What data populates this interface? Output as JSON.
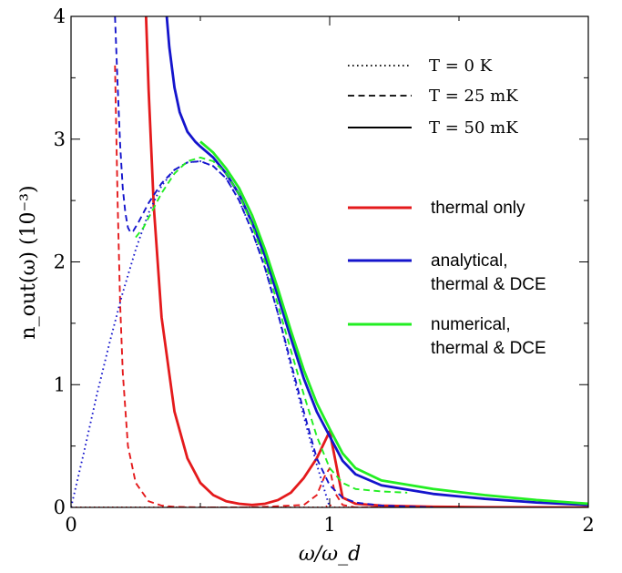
{
  "chart_data": {
    "type": "line",
    "xlabel": "ω/ω_d",
    "ylabel": "n_out(ω)   (10⁻³)",
    "xlim": [
      0,
      2
    ],
    "ylim": [
      0,
      4
    ],
    "x_ticks": [
      "0",
      "1",
      "2"
    ],
    "y_ticks": [
      "0",
      "1",
      "2",
      "3",
      "4"
    ],
    "grid": false,
    "legend_placement": "top-right",
    "legend_linestyles": [
      {
        "label": "T = 0 K",
        "style": "dotted"
      },
      {
        "label": "T = 25 mK",
        "style": "dashed"
      },
      {
        "label": "T = 50 mK",
        "style": "solid"
      }
    ],
    "legend_colors": [
      {
        "label": "thermal only",
        "color": "#e41a1c"
      },
      {
        "label": "analytical,\nthermal & DCE",
        "color": "#1414cc"
      },
      {
        "label": "numerical,\nthermal & DCE",
        "color": "#22ee22"
      }
    ],
    "series": [
      {
        "color": "#e41a1c",
        "style": "solid",
        "temperature": "T = 50 mK",
        "x": [
          0.29,
          0.3,
          0.32,
          0.35,
          0.4,
          0.45,
          0.5,
          0.55,
          0.6,
          0.65,
          0.7,
          0.75,
          0.8,
          0.85,
          0.9,
          0.95,
          1.0,
          1.05,
          1.1,
          1.2,
          1.4,
          1.6,
          1.8,
          2.0
        ],
        "y": [
          4.0,
          3.4,
          2.45,
          1.55,
          0.78,
          0.4,
          0.2,
          0.1,
          0.05,
          0.03,
          0.02,
          0.03,
          0.06,
          0.12,
          0.24,
          0.4,
          0.62,
          0.08,
          0.03,
          0.015,
          0.005,
          0.002,
          0.001,
          0.0
        ]
      },
      {
        "color": "#e41a1c",
        "style": "dashed",
        "temperature": "T = 25 mK",
        "x": [
          0.17,
          0.18,
          0.19,
          0.2,
          0.22,
          0.25,
          0.3,
          0.35,
          0.4,
          0.5,
          0.7,
          0.9,
          0.95,
          0.98,
          1.0,
          1.02,
          1.05,
          1.1,
          1.3,
          2.0
        ],
        "y": [
          3.6,
          2.5,
          1.65,
          1.1,
          0.5,
          0.2,
          0.05,
          0.015,
          0.005,
          0.0,
          0.0,
          0.02,
          0.1,
          0.25,
          0.32,
          0.12,
          0.02,
          0.0,
          0.0,
          0.0
        ]
      },
      {
        "color": "#e41a1c",
        "style": "dotted",
        "temperature": "T = 0 K",
        "x": [
          0.0,
          0.98,
          1.0,
          1.02,
          2.0
        ],
        "y": [
          0.0,
          0.0,
          0.02,
          0.0,
          0.0
        ]
      },
      {
        "color": "#1414cc",
        "style": "solid",
        "temperature": "T = 50 mK",
        "x": [
          0.37,
          0.38,
          0.4,
          0.42,
          0.45,
          0.48,
          0.5,
          0.55,
          0.6,
          0.65,
          0.7,
          0.75,
          0.8,
          0.85,
          0.9,
          0.95,
          1.0,
          1.05,
          1.1,
          1.2,
          1.4,
          1.6,
          1.8,
          2.0
        ],
        "y": [
          4.0,
          3.75,
          3.42,
          3.22,
          3.06,
          2.98,
          2.94,
          2.85,
          2.72,
          2.55,
          2.32,
          2.05,
          1.72,
          1.38,
          1.05,
          0.78,
          0.58,
          0.38,
          0.27,
          0.18,
          0.11,
          0.07,
          0.04,
          0.02
        ]
      },
      {
        "color": "#1414cc",
        "style": "dashed",
        "temperature": "T = 25 mK",
        "x": [
          0.17,
          0.18,
          0.19,
          0.2,
          0.21,
          0.22,
          0.23,
          0.24,
          0.26,
          0.28,
          0.3,
          0.35,
          0.4,
          0.45,
          0.5,
          0.55,
          0.6,
          0.65,
          0.7,
          0.75,
          0.8,
          0.85,
          0.9,
          0.95,
          1.0,
          1.05,
          1.1,
          1.2,
          1.4
        ],
        "y": [
          4.0,
          3.45,
          2.95,
          2.6,
          2.4,
          2.28,
          2.24,
          2.25,
          2.32,
          2.4,
          2.48,
          2.64,
          2.75,
          2.81,
          2.82,
          2.78,
          2.68,
          2.5,
          2.25,
          1.95,
          1.58,
          1.18,
          0.78,
          0.4,
          0.18,
          0.08,
          0.04,
          0.015,
          0.0
        ]
      },
      {
        "color": "#1414cc",
        "style": "dotted",
        "temperature": "T = 0 K",
        "x": [
          0.0,
          0.05,
          0.1,
          0.15,
          0.2,
          0.25,
          0.3,
          0.35,
          0.4,
          0.45,
          0.5,
          0.55,
          0.6,
          0.65,
          0.7,
          0.75,
          0.8,
          0.85,
          0.9,
          0.95,
          1.0
        ],
        "y": [
          0.0,
          0.45,
          0.92,
          1.35,
          1.75,
          2.1,
          2.4,
          2.62,
          2.75,
          2.81,
          2.82,
          2.78,
          2.68,
          2.5,
          2.25,
          1.95,
          1.58,
          1.15,
          0.74,
          0.35,
          0.0
        ]
      },
      {
        "color": "#22ee22",
        "style": "solid",
        "temperature": "T = 50 mK",
        "x": [
          0.5,
          0.55,
          0.6,
          0.65,
          0.7,
          0.75,
          0.8,
          0.85,
          0.9,
          0.95,
          1.0,
          1.05,
          1.1,
          1.2,
          1.4,
          1.6,
          1.8,
          2.0
        ],
        "y": [
          2.98,
          2.89,
          2.76,
          2.6,
          2.38,
          2.1,
          1.78,
          1.44,
          1.12,
          0.85,
          0.64,
          0.44,
          0.32,
          0.22,
          0.15,
          0.1,
          0.06,
          0.03
        ]
      },
      {
        "color": "#22ee22",
        "style": "dashed",
        "temperature": "T = 25 mK",
        "x": [
          0.25,
          0.28,
          0.3,
          0.35,
          0.4,
          0.45,
          0.5,
          0.55,
          0.6,
          0.65,
          0.7,
          0.75,
          0.8,
          0.85,
          0.9,
          0.95,
          1.0,
          1.05,
          1.1,
          1.2,
          1.3
        ],
        "y": [
          2.2,
          2.28,
          2.36,
          2.56,
          2.72,
          2.82,
          2.85,
          2.82,
          2.72,
          2.55,
          2.3,
          2.0,
          1.65,
          1.28,
          0.92,
          0.58,
          0.32,
          0.2,
          0.15,
          0.13,
          0.12
        ]
      }
    ]
  }
}
